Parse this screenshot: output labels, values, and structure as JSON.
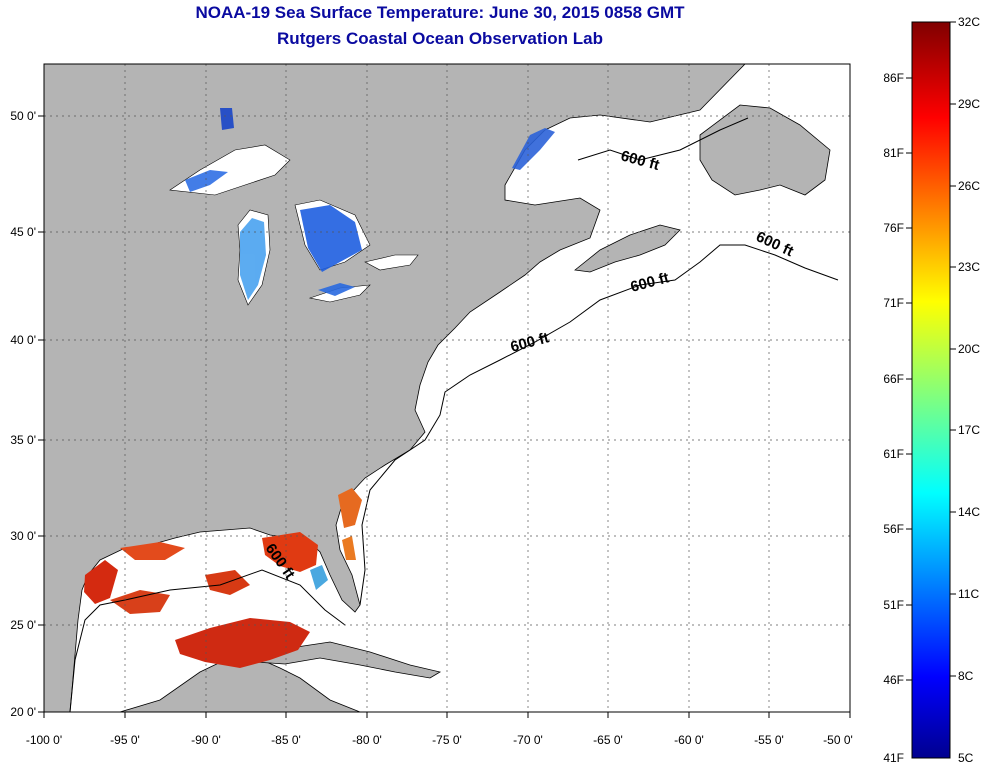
{
  "header": {
    "title": "NOAA-19 Sea Surface Temperature:  June 30, 2015 0858 GMT",
    "subtitle": "Rutgers Coastal Ocean Observation Lab"
  },
  "map": {
    "x_ticks": [
      "-100 0'",
      "-95 0'",
      "-90 0'",
      "-85 0'",
      "-80 0'",
      "-75 0'",
      "-70 0'",
      "-65 0'",
      "-60 0'",
      "-55 0'",
      "-50 0'"
    ],
    "y_ticks": [
      "50 0'",
      "45 0'",
      "40 0'",
      "35 0'",
      "30 0'",
      "25 0'",
      "20 0'"
    ],
    "lon_range": [
      -100,
      -50
    ],
    "lat_range": [
      20,
      52
    ],
    "contour_labels": [
      "600 ft",
      "600 ft",
      "600 ft",
      "600 ft",
      "600 ft"
    ],
    "land_color": "#b4b4b4",
    "ocean_color": "#ffffff"
  },
  "colorbar": {
    "f_labels": [
      "86F",
      "81F",
      "76F",
      "71F",
      "66F",
      "61F",
      "56F",
      "51F",
      "46F",
      "41F"
    ],
    "c_labels": [
      "32C",
      "29C",
      "26C",
      "23C",
      "20C",
      "17C",
      "14C",
      "11C",
      "8C",
      "5C"
    ],
    "colormap": "jet"
  }
}
